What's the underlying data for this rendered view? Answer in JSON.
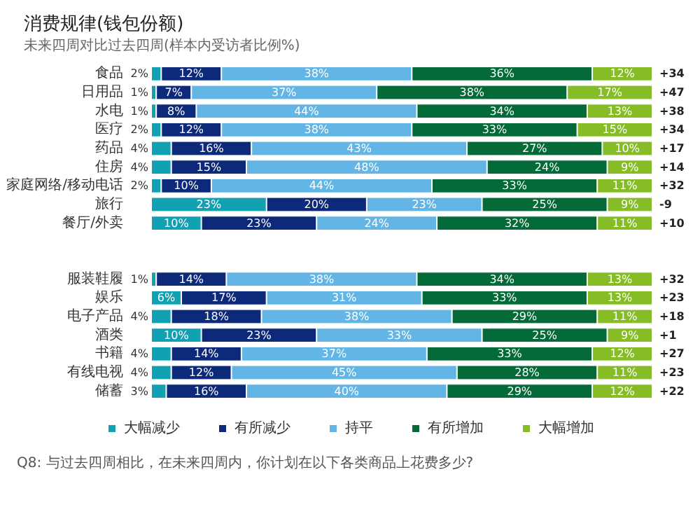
{
  "chart_data": {
    "type": "bar",
    "orientation": "horizontal",
    "stacked": true,
    "title": "消费规律(钱包份额)",
    "subtitle": "未来四周对比过去四周(样本内受访者比例%)",
    "categories": [
      "食品",
      "日用品",
      "水电",
      "医疗",
      "药品",
      "住房",
      "家庭网络/移动电话",
      "旅行",
      "餐厅/外卖",
      null,
      null,
      "服装鞋履",
      "娱乐",
      "电子产品",
      "酒类",
      "书籍",
      "有线电视",
      "储蓄"
    ],
    "series": [
      {
        "name": "大幅减少",
        "color": "#12a0b3",
        "values": [
          2,
          1,
          1,
          2,
          4,
          4,
          2,
          23,
          10,
          null,
          null,
          1,
          6,
          4,
          10,
          4,
          4,
          3
        ],
        "value_labels": [
          "2%",
          "1%",
          "1%",
          "2%",
          "4%",
          "4%",
          "2%",
          "23%",
          "10%",
          null,
          null,
          "1%",
          "6%",
          "4%",
          "10%",
          "4%",
          "4%",
          "3%"
        ]
      },
      {
        "name": "有所减少",
        "color": "#0d2a7a",
        "values": [
          12,
          7,
          8,
          12,
          16,
          15,
          10,
          20,
          23,
          null,
          null,
          14,
          17,
          18,
          23,
          14,
          12,
          16
        ],
        "value_labels": [
          "12%",
          "7%",
          "8%",
          "12%",
          "16%",
          "15%",
          "10%",
          "20%",
          "23%",
          null,
          null,
          "14%",
          "17%",
          "18%",
          "23%",
          "14%",
          "12%",
          "16%"
        ]
      },
      {
        "name": "持平",
        "color": "#62b5e5",
        "values": [
          38,
          37,
          44,
          38,
          43,
          48,
          44,
          23,
          24,
          null,
          null,
          38,
          31,
          38,
          33,
          37,
          45,
          40
        ],
        "value_labels": [
          "38%",
          "37%",
          "44%",
          "38%",
          "43%",
          "48%",
          "44%",
          "23%",
          "24%",
          null,
          null,
          "38%",
          "31%",
          "38%",
          "33%",
          "37%",
          "45%",
          "40%"
        ]
      },
      {
        "name": "有所增加",
        "color": "#046a38",
        "values": [
          36,
          38,
          34,
          33,
          27,
          24,
          33,
          25,
          32,
          null,
          null,
          34,
          33,
          29,
          25,
          33,
          28,
          29
        ],
        "value_labels": [
          "36%",
          "38%",
          "34%",
          "33%",
          "27%",
          "24%",
          "33%",
          "25%",
          "32%",
          null,
          null,
          "34%",
          "33%",
          "29%",
          "25%",
          "33%",
          "28%",
          "29%"
        ]
      },
      {
        "name": "大幅增加",
        "color": "#86bc25",
        "values": [
          12,
          17,
          13,
          15,
          10,
          9,
          11,
          9,
          11,
          null,
          null,
          13,
          13,
          11,
          9,
          12,
          11,
          12
        ],
        "value_labels": [
          "12%",
          "17%",
          "13%",
          "15%",
          "10%",
          "9%",
          "11%",
          "9%",
          "11%",
          null,
          null,
          "13%",
          "13%",
          "11%",
          "9%",
          "12%",
          "11%",
          "12%"
        ]
      }
    ],
    "xlim": [
      0,
      100
    ],
    "tick_labels": "y",
    "legend": "bottom",
    "annotations": [
      "+34",
      "+47",
      "+38",
      "+34",
      "+17",
      "+14",
      "+32",
      "-9",
      "+10",
      "+32",
      "+23",
      "+18",
      "+1",
      "+27",
      "+23",
      "+22",
      "Q8: 与过去四周相比，在未来四周内，你计划在以下各类商品上花费多少?"
    ]
  }
}
